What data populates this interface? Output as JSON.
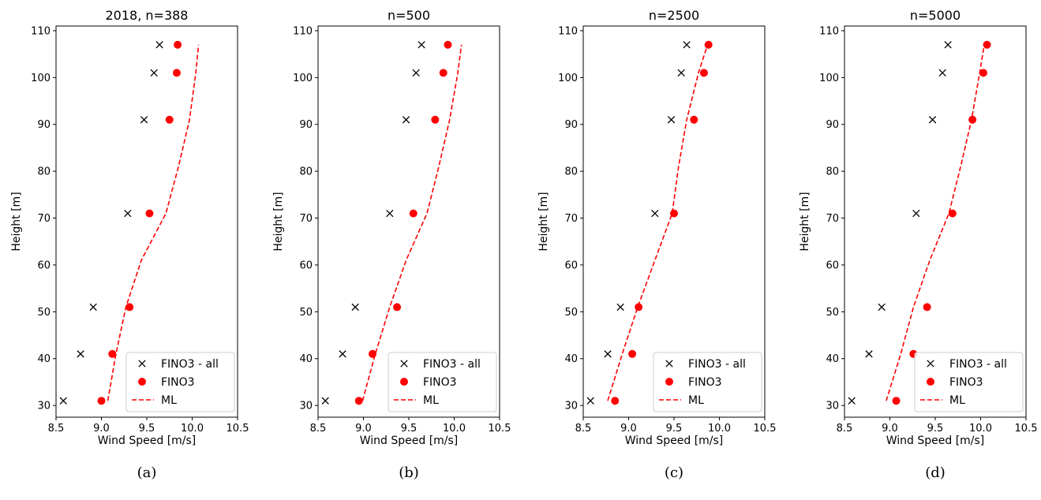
{
  "chart_data": [
    {
      "type": "scatter",
      "title": "2018, n=388",
      "caption": "(a)",
      "xlabel": "Wind Speed [m/s]",
      "ylabel": "Height [m]",
      "xlim": [
        8.5,
        10.5
      ],
      "ylim": [
        27.5,
        111
      ],
      "xticks": [
        "8.5",
        "9.0",
        "9.5",
        "10.0",
        "10.5"
      ],
      "yticks": [
        "30",
        "40",
        "50",
        "60",
        "70",
        "80",
        "90",
        "100",
        "110"
      ],
      "legend_position": "lower-right",
      "series": [
        {
          "name": "FINO3 - all",
          "marker": "x",
          "color": "#000000",
          "points": [
            [
              8.58,
              31
            ],
            [
              8.77,
              41
            ],
            [
              8.91,
              51
            ],
            [
              9.29,
              71
            ],
            [
              9.47,
              91
            ],
            [
              9.58,
              101
            ],
            [
              9.64,
              107
            ]
          ]
        },
        {
          "name": "FINO3",
          "marker": "circle",
          "color": "#ff0000",
          "points": [
            [
              9.0,
              31
            ],
            [
              9.12,
              41
            ],
            [
              9.31,
              51
            ],
            [
              9.53,
              71
            ],
            [
              9.75,
              91
            ],
            [
              9.83,
              101
            ],
            [
              9.84,
              107
            ]
          ]
        },
        {
          "name": "ML",
          "marker": "dashed-line",
          "color": "#ff0000",
          "points": [
            [
              9.07,
              31
            ],
            [
              9.16,
              41
            ],
            [
              9.27,
              51
            ],
            [
              9.44,
              61
            ],
            [
              9.71,
              71
            ],
            [
              9.85,
              81
            ],
            [
              9.97,
              91
            ],
            [
              10.04,
              101
            ],
            [
              10.07,
              107
            ]
          ]
        }
      ]
    },
    {
      "type": "scatter",
      "title": "n=500",
      "caption": "(b)",
      "xlabel": "Wind Speed [m/s]",
      "ylabel": "Height [m]",
      "xlim": [
        8.5,
        10.5
      ],
      "ylim": [
        27.5,
        111
      ],
      "xticks": [
        "8.5",
        "9.0",
        "9.5",
        "10.0",
        "10.5"
      ],
      "yticks": [
        "30",
        "40",
        "50",
        "60",
        "70",
        "80",
        "90",
        "100",
        "110"
      ],
      "legend_position": "lower-right",
      "series": [
        {
          "name": "FINO3 - all",
          "marker": "x",
          "color": "#000000",
          "points": [
            [
              8.58,
              31
            ],
            [
              8.77,
              41
            ],
            [
              8.91,
              51
            ],
            [
              9.29,
              71
            ],
            [
              9.47,
              91
            ],
            [
              9.58,
              101
            ],
            [
              9.64,
              107
            ]
          ]
        },
        {
          "name": "FINO3",
          "marker": "circle",
          "color": "#ff0000",
          "points": [
            [
              8.95,
              31
            ],
            [
              9.1,
              41
            ],
            [
              9.37,
              51
            ],
            [
              9.55,
              71
            ],
            [
              9.79,
              91
            ],
            [
              9.88,
              101
            ],
            [
              9.93,
              107
            ]
          ]
        },
        {
          "name": "ML",
          "marker": "dashed-line",
          "color": "#ff0000",
          "points": [
            [
              8.99,
              31
            ],
            [
              9.13,
              41
            ],
            [
              9.29,
              51
            ],
            [
              9.47,
              61
            ],
            [
              9.7,
              71
            ],
            [
              9.83,
              81
            ],
            [
              9.95,
              91
            ],
            [
              10.04,
              101
            ],
            [
              10.08,
              107
            ]
          ]
        }
      ]
    },
    {
      "type": "scatter",
      "title": "n=2500",
      "caption": "(c)",
      "xlabel": "Wind Speed [m/s]",
      "ylabel": "Height [m]",
      "xlim": [
        8.5,
        10.5
      ],
      "ylim": [
        27.5,
        111
      ],
      "xticks": [
        "8.5",
        "9.0",
        "9.5",
        "10.0",
        "10.5"
      ],
      "yticks": [
        "30",
        "40",
        "50",
        "60",
        "70",
        "80",
        "90",
        "100",
        "110"
      ],
      "legend_position": "lower-right",
      "series": [
        {
          "name": "FINO3 - all",
          "marker": "x",
          "color": "#000000",
          "points": [
            [
              8.58,
              31
            ],
            [
              8.77,
              41
            ],
            [
              8.91,
              51
            ],
            [
              9.29,
              71
            ],
            [
              9.47,
              91
            ],
            [
              9.58,
              101
            ],
            [
              9.64,
              107
            ]
          ]
        },
        {
          "name": "FINO3",
          "marker": "circle",
          "color": "#ff0000",
          "points": [
            [
              8.85,
              31
            ],
            [
              9.04,
              41
            ],
            [
              9.11,
              51
            ],
            [
              9.5,
              71
            ],
            [
              9.72,
              91
            ],
            [
              9.83,
              101
            ],
            [
              9.88,
              107
            ]
          ]
        },
        {
          "name": "ML",
          "marker": "dashed-line",
          "color": "#ff0000",
          "points": [
            [
              8.77,
              31
            ],
            [
              8.93,
              41
            ],
            [
              9.1,
              51
            ],
            [
              9.29,
              61
            ],
            [
              9.48,
              71
            ],
            [
              9.55,
              81
            ],
            [
              9.64,
              91
            ],
            [
              9.77,
              101
            ],
            [
              9.87,
              107
            ]
          ]
        }
      ]
    },
    {
      "type": "scatter",
      "title": "n=5000",
      "caption": "(d)",
      "xlabel": "Wind Speed [m/s]",
      "ylabel": "Height [m]",
      "xlim": [
        8.5,
        10.5
      ],
      "ylim": [
        27.5,
        111
      ],
      "xticks": [
        "8.5",
        "9.0",
        "9.5",
        "10.0",
        "10.5"
      ],
      "yticks": [
        "30",
        "40",
        "50",
        "60",
        "70",
        "80",
        "90",
        "100",
        "110"
      ],
      "legend_position": "lower-right",
      "series": [
        {
          "name": "FINO3 - all",
          "marker": "x",
          "color": "#000000",
          "points": [
            [
              8.58,
              31
            ],
            [
              8.77,
              41
            ],
            [
              8.91,
              51
            ],
            [
              9.29,
              71
            ],
            [
              9.47,
              91
            ],
            [
              9.58,
              101
            ],
            [
              9.64,
              107
            ]
          ]
        },
        {
          "name": "FINO3",
          "marker": "circle",
          "color": "#ff0000",
          "points": [
            [
              9.07,
              31
            ],
            [
              9.26,
              41
            ],
            [
              9.41,
              51
            ],
            [
              9.69,
              71
            ],
            [
              9.91,
              91
            ],
            [
              10.03,
              101
            ],
            [
              10.07,
              107
            ]
          ]
        },
        {
          "name": "ML",
          "marker": "dashed-line",
          "color": "#ff0000",
          "points": [
            [
              8.96,
              31
            ],
            [
              9.12,
              41
            ],
            [
              9.26,
              51
            ],
            [
              9.44,
              61
            ],
            [
              9.65,
              71
            ],
            [
              9.78,
              81
            ],
            [
              9.9,
              91
            ],
            [
              9.99,
              101
            ],
            [
              10.04,
              107
            ]
          ]
        }
      ]
    }
  ]
}
